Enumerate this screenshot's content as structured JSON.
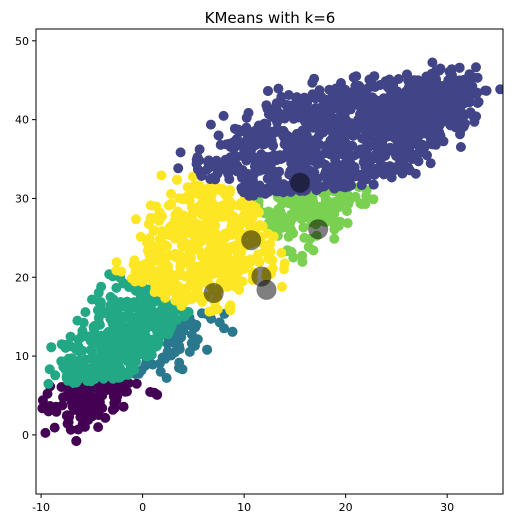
{
  "chart_data": {
    "type": "scatter",
    "title": "KMeans with k=6",
    "xlabel": "",
    "ylabel": "",
    "xlim": [
      -10.5,
      35.5
    ],
    "ylim": [
      -7.5,
      51.5
    ],
    "xticks": [
      -10,
      0,
      10,
      20,
      30
    ],
    "yticks": [
      0,
      10,
      20,
      30,
      40,
      50
    ],
    "grid": false,
    "legend": "none",
    "cluster_colors": [
      "#440154",
      "#414487",
      "#2a788e",
      "#22a884",
      "#7ad151",
      "#fde725"
    ],
    "clusters": [
      {
        "id": 0,
        "color": "#440154",
        "center": [
          -0.5,
          1.5
        ],
        "extent": "bottom-left diagonal band"
      },
      {
        "id": 1,
        "color": "#414487",
        "center": [
          18.0,
          36.5
        ],
        "extent": "upper region"
      },
      {
        "id": 2,
        "color": "#2a788e",
        "center": [
          6.0,
          9.0
        ],
        "extent": "middle diagonal band"
      },
      {
        "id": 3,
        "color": "#22a884",
        "center": [
          -3.0,
          13.0
        ],
        "extent": "left-middle"
      },
      {
        "id": 4,
        "color": "#7ad151",
        "center": [
          20.0,
          26.0
        ],
        "extent": "right-middle"
      },
      {
        "id": 5,
        "color": "#fde725",
        "center": [
          7.0,
          22.0
        ],
        "extent": "central"
      }
    ],
    "centroids": [
      {
        "x": 15.5,
        "y": 32.0
      },
      {
        "x": 10.7,
        "y": 24.7
      },
      {
        "x": 17.3,
        "y": 26.1
      },
      {
        "x": 11.7,
        "y": 20.1
      },
      {
        "x": 12.2,
        "y": 18.4
      },
      {
        "x": 7.0,
        "y": 18.0
      }
    ]
  }
}
